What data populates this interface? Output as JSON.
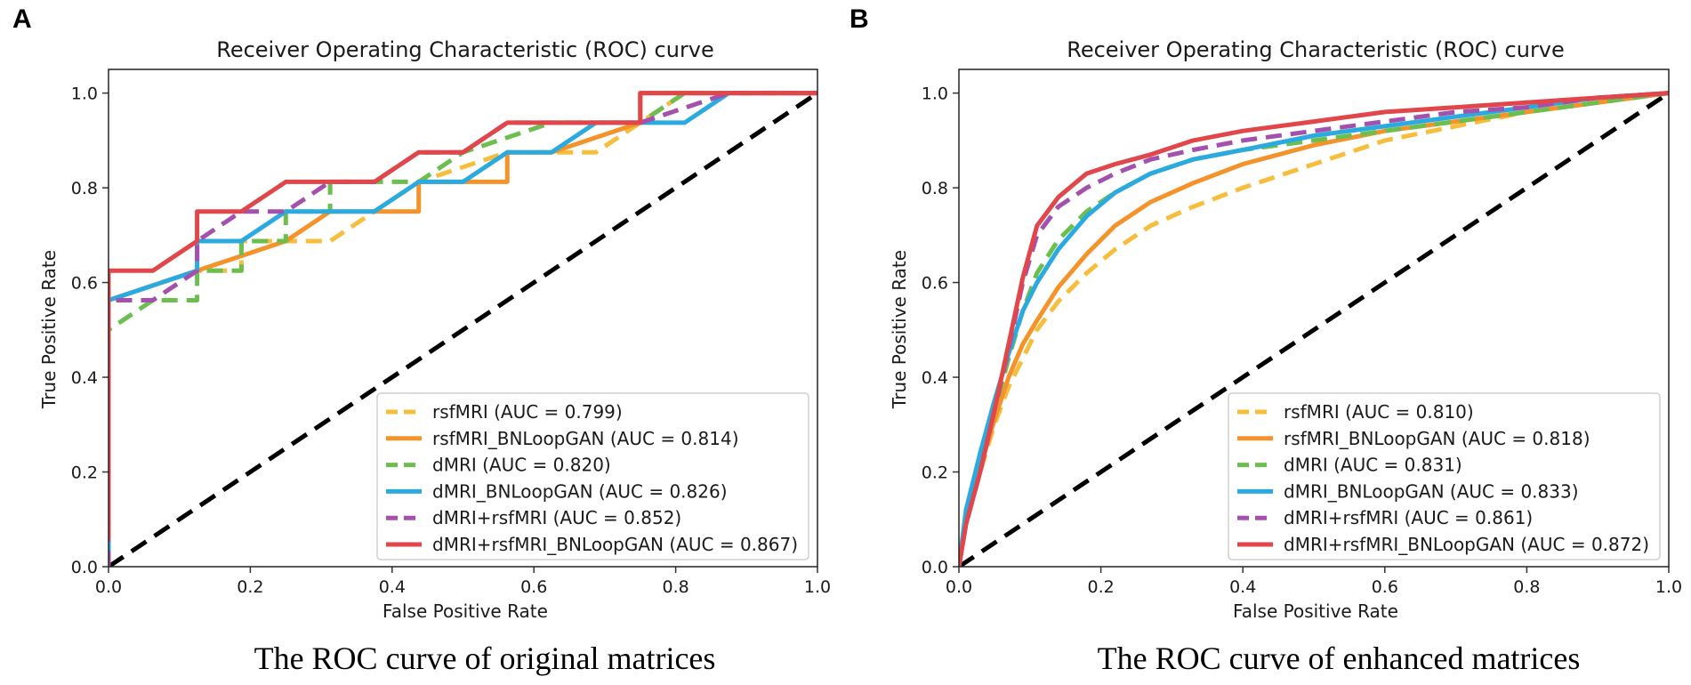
{
  "figure": {
    "captions": [
      "The ROC curve of original matrices",
      "The ROC curve of enhanced matrices"
    ]
  },
  "colors": {
    "rsfMRI": "#f6be3c",
    "rsfMRI_BNLoopGAN": "#f5932b",
    "dMRI": "#6cbf4e",
    "dMRI_BNLoopGAN": "#2baadf",
    "dMRI+rsfMRI": "#a451ad",
    "dMRI+rsfMRI_BNLoopGAN": "#e0464a",
    "diagonal": "#000000"
  },
  "chart_data": [
    {
      "type": "line",
      "panel_label": "A",
      "title": "Receiver Operating Characteristic (ROC) curve",
      "xlabel": "False Positive Rate",
      "ylabel": "True Positive Rate",
      "xlim": [
        0,
        1.0
      ],
      "ylim": [
        0,
        1.05
      ],
      "xticks": [
        "0.0",
        "0.2",
        "0.4",
        "0.6",
        "0.8",
        "1.0"
      ],
      "yticks": [
        "0.0",
        "0.2",
        "0.4",
        "0.6",
        "0.8",
        "1.0"
      ],
      "legend_position": "lower-right",
      "series": [
        {
          "name": "rsfMRI (AUC = 0.799)",
          "key": "rsfMRI",
          "dash": true,
          "x": [
            0,
            0,
            0.125,
            0.1875,
            0.1875,
            0.3125,
            0.375,
            0.4375,
            0.4375,
            0.5625,
            0.6875,
            0.75,
            0.75,
            0.8125,
            1.0
          ],
          "y": [
            0,
            0.5625,
            0.625,
            0.625,
            0.6875,
            0.6875,
            0.75,
            0.8125,
            0.8125,
            0.875,
            0.875,
            0.9375,
            0.9375,
            1.0,
            1.0
          ]
        },
        {
          "name": "rsfMRI_BNLoopGAN (AUC = 0.814)",
          "key": "rsfMRI_BNLoopGAN",
          "dash": false,
          "x": [
            0,
            0,
            0.125,
            0.25,
            0.3125,
            0.4375,
            0.4375,
            0.5625,
            0.5625,
            0.625,
            0.75,
            0.75,
            0.8125,
            1.0
          ],
          "y": [
            0,
            0.5625,
            0.625,
            0.6875,
            0.75,
            0.75,
            0.8125,
            0.8125,
            0.875,
            0.875,
            0.9375,
            1.0,
            1.0,
            1.0
          ]
        },
        {
          "name": "dMRI (AUC = 0.820)",
          "key": "dMRI",
          "dash": true,
          "x": [
            0,
            0,
            0.0625,
            0.125,
            0.125,
            0.1875,
            0.1875,
            0.25,
            0.25,
            0.3125,
            0.3125,
            0.4375,
            0.4375,
            0.5,
            0.625,
            0.75,
            0.8125,
            1.0
          ],
          "y": [
            0,
            0.5,
            0.5625,
            0.5625,
            0.625,
            0.625,
            0.6875,
            0.6875,
            0.75,
            0.75,
            0.8125,
            0.8125,
            0.8125,
            0.875,
            0.9375,
            0.9375,
            1.0,
            1.0
          ]
        },
        {
          "name": "dMRI_BNLoopGAN (AUC = 0.826)",
          "key": "dMRI_BNLoopGAN",
          "dash": false,
          "x": [
            0,
            0,
            0.125,
            0.125,
            0.1875,
            0.25,
            0.375,
            0.4375,
            0.5,
            0.5625,
            0.625,
            0.6875,
            0.75,
            0.8125,
            0.875,
            1.0
          ],
          "y": [
            0,
            0.5625,
            0.625,
            0.6875,
            0.6875,
            0.75,
            0.75,
            0.8125,
            0.8125,
            0.875,
            0.875,
            0.9375,
            0.9375,
            0.9375,
            1.0,
            1.0
          ]
        },
        {
          "name": "dMRI+rsfMRI (AUC = 0.852)",
          "key": "dMRI+rsfMRI",
          "dash": true,
          "x": [
            0,
            0,
            0.0625,
            0.125,
            0.125,
            0.1875,
            0.25,
            0.3125,
            0.375,
            0.4375,
            0.5,
            0.5625,
            0.625,
            0.75,
            0.875,
            1.0
          ],
          "y": [
            0,
            0.5625,
            0.5625,
            0.625,
            0.6875,
            0.75,
            0.75,
            0.8125,
            0.8125,
            0.875,
            0.875,
            0.9375,
            0.9375,
            0.9375,
            1.0,
            1.0
          ]
        },
        {
          "name": "dMRI+rsfMRI_BNLoopGAN (AUC = 0.867)",
          "key": "dMRI+rsfMRI_BNLoopGAN",
          "dash": false,
          "x": [
            0,
            0,
            0.0625,
            0.125,
            0.125,
            0.1875,
            0.25,
            0.375,
            0.4375,
            0.5,
            0.5625,
            0.6875,
            0.75,
            0.75,
            1.0
          ],
          "y": [
            0.06,
            0.625,
            0.625,
            0.6875,
            0.75,
            0.75,
            0.8125,
            0.8125,
            0.875,
            0.875,
            0.9375,
            0.9375,
            0.9375,
            1.0,
            1.0
          ]
        }
      ]
    },
    {
      "type": "line",
      "panel_label": "B",
      "title": "Receiver Operating Characteristic (ROC) curve",
      "xlabel": "False Positive Rate",
      "ylabel": "True Positive Rate",
      "xlim": [
        0,
        1.0
      ],
      "ylim": [
        0,
        1.05
      ],
      "xticks": [
        "0.0",
        "0.2",
        "0.4",
        "0.6",
        "0.8",
        "1.0"
      ],
      "yticks": [
        "0.0",
        "0.2",
        "0.4",
        "0.6",
        "0.8",
        "1.0"
      ],
      "legend_position": "lower-right",
      "series": [
        {
          "name": "rsfMRI (AUC = 0.810)",
          "key": "rsfMRI",
          "dash": true,
          "x": [
            0,
            0.01,
            0.03,
            0.05,
            0.07,
            0.09,
            0.11,
            0.14,
            0.18,
            0.22,
            0.27,
            0.33,
            0.4,
            0.5,
            0.6,
            0.7,
            0.8,
            0.9,
            1.0
          ],
          "y": [
            0,
            0.1,
            0.2,
            0.3,
            0.38,
            0.44,
            0.5,
            0.56,
            0.62,
            0.67,
            0.72,
            0.76,
            0.8,
            0.85,
            0.9,
            0.93,
            0.96,
            0.98,
            1.0
          ]
        },
        {
          "name": "rsfMRI_BNLoopGAN (AUC = 0.818)",
          "key": "rsfMRI_BNLoopGAN",
          "dash": false,
          "x": [
            0,
            0.01,
            0.03,
            0.05,
            0.07,
            0.09,
            0.11,
            0.14,
            0.18,
            0.22,
            0.27,
            0.33,
            0.4,
            0.5,
            0.6,
            0.7,
            0.8,
            0.9,
            1.0
          ],
          "y": [
            0,
            0.1,
            0.21,
            0.31,
            0.4,
            0.47,
            0.52,
            0.59,
            0.66,
            0.72,
            0.77,
            0.81,
            0.85,
            0.89,
            0.92,
            0.94,
            0.96,
            0.98,
            1.0
          ]
        },
        {
          "name": "dMRI (AUC = 0.831)",
          "key": "dMRI",
          "dash": true,
          "x": [
            0,
            0.01,
            0.03,
            0.05,
            0.07,
            0.09,
            0.11,
            0.14,
            0.18,
            0.22,
            0.27,
            0.33,
            0.4,
            0.5,
            0.6,
            0.7,
            0.8,
            0.9,
            1.0
          ],
          "y": [
            0,
            0.1,
            0.22,
            0.33,
            0.44,
            0.54,
            0.62,
            0.69,
            0.75,
            0.79,
            0.83,
            0.86,
            0.88,
            0.9,
            0.92,
            0.94,
            0.96,
            0.98,
            1.0
          ]
        },
        {
          "name": "dMRI_BNLoopGAN (AUC = 0.833)",
          "key": "dMRI_BNLoopGAN",
          "dash": false,
          "x": [
            0,
            0.01,
            0.03,
            0.05,
            0.07,
            0.09,
            0.11,
            0.14,
            0.18,
            0.22,
            0.27,
            0.33,
            0.4,
            0.5,
            0.6,
            0.7,
            0.8,
            0.9,
            1.0
          ],
          "y": [
            0,
            0.12,
            0.24,
            0.35,
            0.45,
            0.54,
            0.6,
            0.67,
            0.74,
            0.79,
            0.83,
            0.86,
            0.88,
            0.91,
            0.93,
            0.95,
            0.97,
            0.99,
            1.0
          ]
        },
        {
          "name": "dMRI+rsfMRI (AUC = 0.861)",
          "key": "dMRI+rsfMRI",
          "dash": true,
          "x": [
            0,
            0.01,
            0.03,
            0.05,
            0.07,
            0.09,
            0.11,
            0.14,
            0.18,
            0.22,
            0.27,
            0.33,
            0.4,
            0.5,
            0.6,
            0.7,
            0.8,
            0.9,
            1.0
          ],
          "y": [
            0,
            0.09,
            0.2,
            0.33,
            0.46,
            0.6,
            0.7,
            0.76,
            0.8,
            0.83,
            0.86,
            0.88,
            0.9,
            0.92,
            0.94,
            0.96,
            0.97,
            0.99,
            1.0
          ]
        },
        {
          "name": "dMRI+rsfMRI_BNLoopGAN (AUC = 0.872)",
          "key": "dMRI+rsfMRI_BNLoopGAN",
          "dash": false,
          "x": [
            0,
            0.01,
            0.03,
            0.05,
            0.07,
            0.09,
            0.11,
            0.14,
            0.18,
            0.22,
            0.27,
            0.33,
            0.4,
            0.5,
            0.6,
            0.7,
            0.8,
            0.9,
            1.0
          ],
          "y": [
            0,
            0.09,
            0.2,
            0.33,
            0.47,
            0.61,
            0.72,
            0.78,
            0.83,
            0.85,
            0.87,
            0.9,
            0.92,
            0.94,
            0.96,
            0.97,
            0.98,
            0.99,
            1.0
          ]
        }
      ]
    }
  ]
}
